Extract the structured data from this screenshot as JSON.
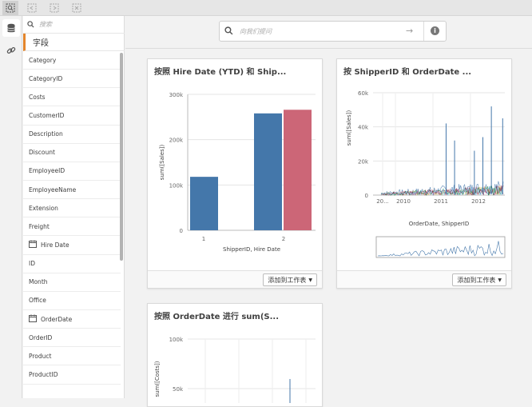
{
  "search": {
    "fields_placeholder": "搜索",
    "ask_placeholder": "向我们提问"
  },
  "fields_tab": "字段",
  "fields": [
    {
      "label": "Category",
      "date": false
    },
    {
      "label": "CategoryID",
      "date": false
    },
    {
      "label": "Costs",
      "date": false
    },
    {
      "label": "CustomerID",
      "date": false
    },
    {
      "label": "Description",
      "date": false
    },
    {
      "label": "Discount",
      "date": false
    },
    {
      "label": "EmployeeID",
      "date": false
    },
    {
      "label": "EmployeeName",
      "date": false
    },
    {
      "label": "Extension",
      "date": false
    },
    {
      "label": "Freight",
      "date": false
    },
    {
      "label": "Hire Date",
      "date": true
    },
    {
      "label": "ID",
      "date": false
    },
    {
      "label": "Month",
      "date": false
    },
    {
      "label": "Office",
      "date": false
    },
    {
      "label": "OrderDate",
      "date": true
    },
    {
      "label": "OrderID",
      "date": false
    },
    {
      "label": "Product",
      "date": false
    },
    {
      "label": "ProductID",
      "date": false
    }
  ],
  "add_to_sheet": "添加到工作表",
  "cards": [
    {
      "title": "按照 Hire Date (YTD) 和 Ship..."
    },
    {
      "title": "按 ShipperID 和 OrderDate ..."
    },
    {
      "title": "按照 OrderDate 进行 sum(S..."
    }
  ],
  "colors": {
    "accent": "#e4862c",
    "blue": "#4477aa",
    "red": "#cc6677"
  },
  "chart_data": [
    {
      "type": "bar",
      "title": "按照 Hire Date (YTD) 和 Ship...",
      "categories": [
        "1",
        "2"
      ],
      "series": [
        {
          "values": [
            118000,
            258000
          ],
          "color": "#4477aa"
        },
        {
          "values": [
            null,
            266000
          ],
          "color": "#cc6677"
        }
      ],
      "yticks": [
        "0",
        "100k",
        "200k",
        "300k"
      ],
      "ylim": [
        0,
        300000
      ],
      "xlabel": "ShipperID, Hire Date",
      "ylabel": "sum([Sales])"
    },
    {
      "type": "line",
      "title": "按 ShipperID 和 OrderDate ...",
      "xticks": [
        "20...",
        "2010",
        "2011",
        "2012"
      ],
      "yticks": [
        "0",
        "20k",
        "40k",
        "60k"
      ],
      "ylim": [
        0,
        60000
      ],
      "xlabel": "OrderDate, ShipperID",
      "ylabel": "sum([Sales])",
      "peaks": [
        {
          "x": "2012-07",
          "y": 52000,
          "color": "#4477aa"
        },
        {
          "x": "2011-03",
          "y": 42000,
          "color": "#4477aa"
        },
        {
          "x": "2012-11",
          "y": 45000,
          "color": "#4477aa"
        },
        {
          "x": "2011-06",
          "y": 32000,
          "color": "#4477aa"
        },
        {
          "x": "2012-04",
          "y": 34000,
          "color": "#4477aa"
        },
        {
          "x": "2012-01",
          "y": 26000,
          "color": "#4477aa"
        }
      ]
    },
    {
      "type": "line",
      "title": "按照 OrderDate 进行 sum(S...",
      "yticks": [
        "100k",
        "50k"
      ],
      "ylabel": "sum([Costs])"
    }
  ]
}
